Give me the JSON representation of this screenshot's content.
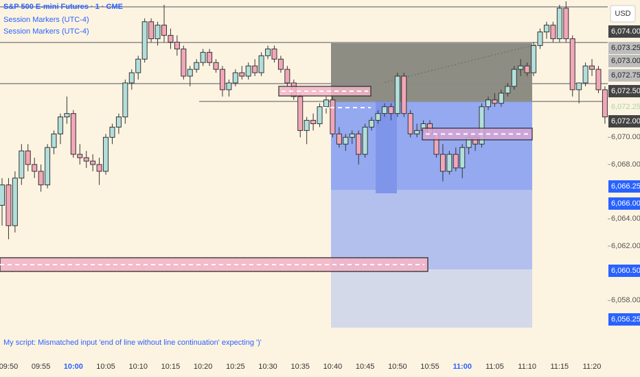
{
  "header": {
    "symbol": "S&P 500 E-mini Futures · 1 · CME",
    "indicators": [
      "Session Markers (UTC-4)",
      "Session Markers (UTC-4)"
    ],
    "currency": "USD"
  },
  "error": "My script: Mismatched input 'end of line without line continuation' expecting ')'",
  "price_labels": [
    {
      "label": "6,074.00",
      "style": "dark"
    },
    {
      "label": "6,073.25",
      "style": "gray"
    },
    {
      "label": "6,073.00",
      "style": "gray"
    },
    {
      "label": "6,072.75",
      "style": "gray"
    },
    {
      "label": "6,072.50",
      "style": "dark"
    },
    {
      "label": "6,072.25",
      "style": "faint"
    },
    {
      "label": "6,072.00",
      "style": "dark"
    },
    {
      "label": "6,066.25",
      "style": "blue"
    },
    {
      "label": "6,066.00",
      "style": "blue"
    },
    {
      "label": "6,060.50",
      "style": "blue"
    },
    {
      "label": "6,056.25",
      "style": "blue"
    }
  ],
  "chart_data": {
    "type": "candlestick",
    "categories": [
      null,
      "09:50",
      null,
      null,
      null,
      null,
      "09:55",
      null,
      null,
      null,
      null,
      "10:00",
      null,
      null,
      null,
      null,
      "10:05",
      null,
      null,
      null,
      null,
      "10:10",
      null,
      null,
      null,
      null,
      "10:15",
      null,
      null,
      null,
      null,
      "10:20",
      null,
      null,
      null,
      null,
      "10:25",
      null,
      null,
      null,
      null,
      "10:30",
      null,
      null,
      null,
      null,
      "10:35",
      null,
      null,
      null,
      null,
      "10:40",
      null,
      null,
      null,
      null,
      "10:45",
      null,
      null,
      null,
      null,
      "10:50",
      null,
      null,
      null,
      null,
      "10:55",
      null,
      null,
      null,
      null,
      "11:00",
      null,
      null,
      null,
      null,
      "11:05",
      null,
      null,
      null,
      null,
      "11:10",
      null,
      null,
      null,
      null,
      "11:15",
      null,
      null,
      null,
      null,
      "11:20",
      null,
      null
    ],
    "open": [
      6065,
      6066.5,
      6063.5,
      6067,
      6069,
      6068,
      6067.5,
      6066.5,
      6069.25,
      6070.25,
      6071.5,
      6071.75,
      6068.75,
      6068.5,
      6068.25,
      6068,
      6067.5,
      6070,
      6070.75,
      6071.5,
      6074,
      6074.75,
      6075.75,
      6078.5,
      6077.25,
      6078.25,
      6077.5,
      6077,
      6076.5,
      6074.5,
      6075,
      6075.5,
      6076.25,
      6075.5,
      6075,
      6073.5,
      6074,
      6074.75,
      6074.5,
      6075.25,
      6074.75,
      6076,
      6076.5,
      6075.75,
      6075,
      6074,
      6073,
      6070.5,
      6071.25,
      6071,
      6072.25,
      6072.75,
      6070.25,
      6069.5,
      6070,
      6070.25,
      6068.75,
      6070.75,
      6071.25,
      6071.75,
      6072.25,
      6071.75,
      6074.5,
      6071.75,
      6070.25,
      6070.5,
      6071,
      6070.25,
      6068.75,
      6067.5,
      6068.75,
      6067.75,
      6069.25,
      6070,
      6069.5,
      6072.25,
      6072.75,
      6072.5,
      6073.25,
      6073.75,
      6075,
      6075.25,
      6074.75,
      6076.75,
      6077.75,
      6078.25,
      6077.25,
      6079.5,
      6077.25,
      6073.5,
      6074,
      6075.25,
      6075,
      6073.5
    ],
    "high": [
      6067,
      6067,
      6067.5,
      6069.5,
      6069.5,
      6068.5,
      6068,
      6069.5,
      6070.5,
      6071.75,
      6073,
      6072,
      6069.5,
      6069,
      6068.75,
      6068.5,
      6070.25,
      6071,
      6071.75,
      6074.25,
      6075,
      6076,
      6078.75,
      6078.75,
      6078.5,
      6079.75,
      6078,
      6077.5,
      6076.75,
      6075.25,
      6075.75,
      6076.5,
      6076.5,
      6075.75,
      6075.25,
      6074.25,
      6075,
      6075.25,
      6075.5,
      6075.75,
      6076.25,
      6076.75,
      6076.75,
      6076,
      6075.25,
      6074.25,
      6073.25,
      6071.5,
      6071.75,
      6072.5,
      6073,
      6073,
      6070.75,
      6070.25,
      6070.5,
      6070.5,
      6071,
      6071.5,
      6072,
      6072.5,
      6072.5,
      6074.75,
      6074.75,
      6072,
      6071,
      6071.25,
      6071.25,
      6070.5,
      6069.5,
      6069,
      6069.25,
      6069.5,
      6070.25,
      6070.5,
      6072.5,
      6073,
      6073.25,
      6073.5,
      6074,
      6075.25,
      6075.75,
      6075.5,
      6077,
      6078,
      6078.5,
      6078.5,
      6079.75,
      6080,
      6077.5,
      6074,
      6075.5,
      6075.75,
      6075.25,
      6073.75
    ],
    "low": [
      6063.5,
      6062.5,
      6063,
      6066.5,
      6067.5,
      6067,
      6066,
      6066.25,
      6068.75,
      6069.5,
      6071,
      6068.5,
      6068,
      6067.75,
      6067.5,
      6066.5,
      6067.25,
      6069.5,
      6070.25,
      6071,
      6073.5,
      6074.25,
      6075.5,
      6077,
      6076.75,
      6077,
      6076.5,
      6076,
      6074.25,
      6073.75,
      6074.75,
      6075.25,
      6075.25,
      6074.75,
      6073,
      6073,
      6073.75,
      6074.25,
      6074.25,
      6074.5,
      6074.5,
      6075.75,
      6075.5,
      6074.75,
      6073.75,
      6072.75,
      6070,
      6069.5,
      6070.5,
      6070.75,
      6071.75,
      6070,
      6069.25,
      6069,
      6069.5,
      6068,
      6068.5,
      6070.5,
      6071,
      6071.5,
      6071.25,
      6071.5,
      6071.5,
      6070,
      6070,
      6070.25,
      6070,
      6068.5,
      6066.75,
      6067.25,
      6067.5,
      6067,
      6068.75,
      6069,
      6069.25,
      6072,
      6072.25,
      6072.25,
      6073,
      6073.5,
      6074.5,
      6074.5,
      6074.5,
      6076.5,
      6077.25,
      6077,
      6077,
      6077,
      6073,
      6072.5,
      6073.75,
      6074.5,
      6073.25,
      6071
    ],
    "close": [
      6066.5,
      6063.5,
      6067,
      6069,
      6068,
      6067.5,
      6066.5,
      6069.25,
      6070.25,
      6071.5,
      6071.75,
      6068.75,
      6068.5,
      6068.25,
      6068,
      6067.5,
      6070,
      6070.75,
      6071.5,
      6074,
      6074.75,
      6075.75,
      6078.5,
      6077.25,
      6078.25,
      6077.5,
      6077,
      6076.5,
      6074.5,
      6075,
      6075.5,
      6076.25,
      6075.5,
      6075,
      6073.5,
      6074,
      6074.75,
      6074.5,
      6075.25,
      6074.75,
      6076,
      6076.5,
      6075.75,
      6075,
      6074,
      6073,
      6070.5,
      6071.25,
      6071,
      6072.25,
      6072.75,
      6070.25,
      6069.5,
      6070,
      6070.25,
      6068.75,
      6070.75,
      6071.25,
      6071.75,
      6072.25,
      6071.75,
      6074.5,
      6071.75,
      6070.25,
      6070.5,
      6071,
      6070.25,
      6068.75,
      6067.5,
      6068.75,
      6067.75,
      6069.25,
      6070,
      6069.5,
      6072.25,
      6072.75,
      6072.5,
      6073.25,
      6073.75,
      6075,
      6075.25,
      6074.75,
      6076.75,
      6077.75,
      6078.25,
      6077.25,
      6079.5,
      6077.25,
      6073.5,
      6074,
      6075.25,
      6075,
      6073.5,
      6071.5
    ],
    "up_color": "#b2dfdb",
    "down_color": "#f2a7b8",
    "ylim": [
      6056,
      6080.1
    ],
    "yticks": [
      {
        "value": 6070,
        "label": "6,070.00"
      },
      {
        "value": 6068,
        "label": "6,068.00"
      },
      {
        "value": 6064,
        "label": "6,064.00"
      },
      {
        "value": 6062,
        "label": "6,062.00"
      },
      {
        "value": 6058,
        "label": "6,058.00"
      }
    ]
  }
}
